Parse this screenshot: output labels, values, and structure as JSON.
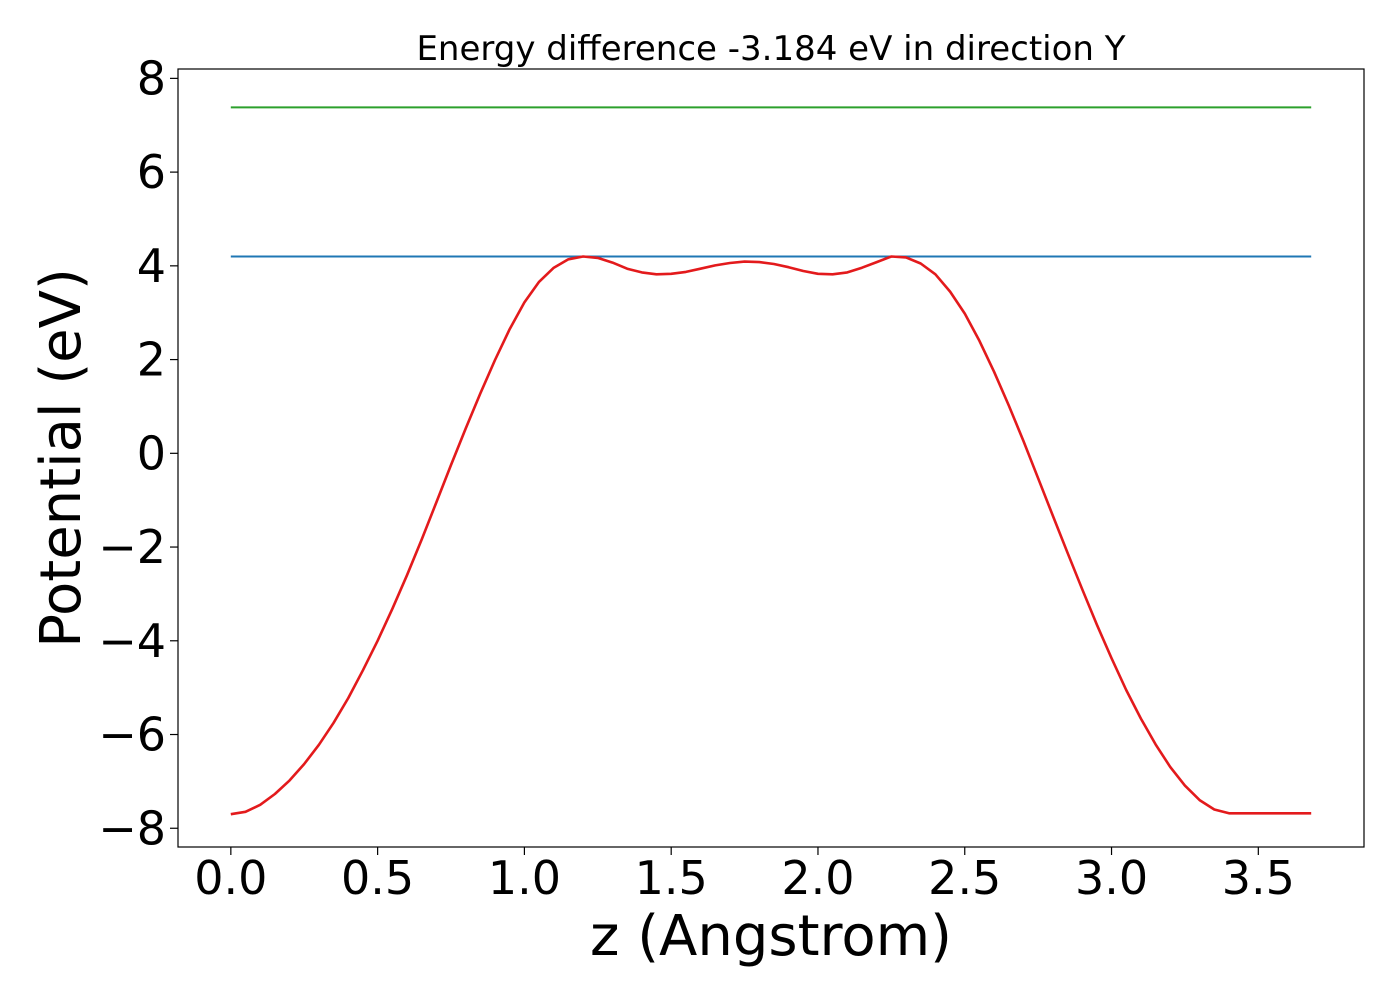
{
  "chart_data": {
    "type": "line",
    "title": "Energy difference -3.184 eV in direction Y",
    "xlabel": "z (Angstrom)",
    "ylabel": "Potential (eV)",
    "xlim": [
      -0.18,
      3.86
    ],
    "ylim": [
      -8.4,
      8.2
    ],
    "xticks": [
      0.0,
      0.5,
      1.0,
      1.5,
      2.0,
      2.5,
      3.0,
      3.5
    ],
    "xtick_labels": [
      "0.0",
      "0.5",
      "1.0",
      "1.5",
      "2.0",
      "2.5",
      "3.0",
      "3.5"
    ],
    "yticks": [
      -8,
      -6,
      -4,
      -2,
      0,
      2,
      4,
      6,
      8
    ],
    "ytick_labels": [
      "−8",
      "−6",
      "−4",
      "−2",
      "0",
      "2",
      "4",
      "6",
      "8"
    ],
    "grid": false,
    "series": [
      {
        "color": "#2ca02c",
        "x": [
          0.0,
          3.68
        ],
        "y": [
          7.38,
          7.38
        ]
      },
      {
        "color": "#1f77b4",
        "x": [
          0.0,
          3.68
        ],
        "y": [
          4.2,
          4.2
        ]
      },
      {
        "color": "#e31a1c",
        "x": [
          0.0,
          0.05,
          0.1,
          0.15,
          0.2,
          0.25,
          0.3,
          0.35,
          0.4,
          0.45,
          0.5,
          0.55,
          0.6,
          0.65,
          0.7,
          0.75,
          0.8,
          0.85,
          0.9,
          0.95,
          1.0,
          1.05,
          1.1,
          1.15,
          1.2,
          1.25,
          1.3,
          1.35,
          1.4,
          1.45,
          1.5,
          1.55,
          1.6,
          1.65,
          1.7,
          1.75,
          1.8,
          1.85,
          1.9,
          1.95,
          2.0,
          2.05,
          2.1,
          2.15,
          2.2,
          2.25,
          2.3,
          2.35,
          2.4,
          2.45,
          2.5,
          2.55,
          2.6,
          2.65,
          2.7,
          2.75,
          2.8,
          2.85,
          2.9,
          2.95,
          3.0,
          3.05,
          3.1,
          3.15,
          3.2,
          3.25,
          3.3,
          3.35,
          3.4,
          3.45,
          3.5,
          3.55,
          3.6,
          3.65,
          3.68
        ],
        "y": [
          -7.7,
          -7.65,
          -7.5,
          -7.27,
          -6.98,
          -6.63,
          -6.22,
          -5.75,
          -5.22,
          -4.63,
          -4.0,
          -3.32,
          -2.6,
          -1.84,
          -1.05,
          -0.25,
          0.53,
          1.28,
          1.99,
          2.65,
          3.22,
          3.66,
          3.96,
          4.14,
          4.2,
          4.17,
          4.07,
          3.94,
          3.86,
          3.82,
          3.83,
          3.87,
          3.94,
          4.01,
          4.06,
          4.09,
          4.08,
          4.04,
          3.97,
          3.89,
          3.83,
          3.82,
          3.86,
          3.96,
          4.08,
          4.2,
          4.18,
          4.05,
          3.82,
          3.45,
          2.98,
          2.4,
          1.74,
          1.02,
          0.26,
          -0.53,
          -1.33,
          -2.12,
          -2.9,
          -3.66,
          -4.37,
          -5.05,
          -5.66,
          -6.21,
          -6.69,
          -7.09,
          -7.4,
          -7.6,
          -7.68,
          -7.68,
          -7.68,
          -7.68,
          -7.68,
          -7.68,
          -7.68
        ]
      }
    ]
  }
}
